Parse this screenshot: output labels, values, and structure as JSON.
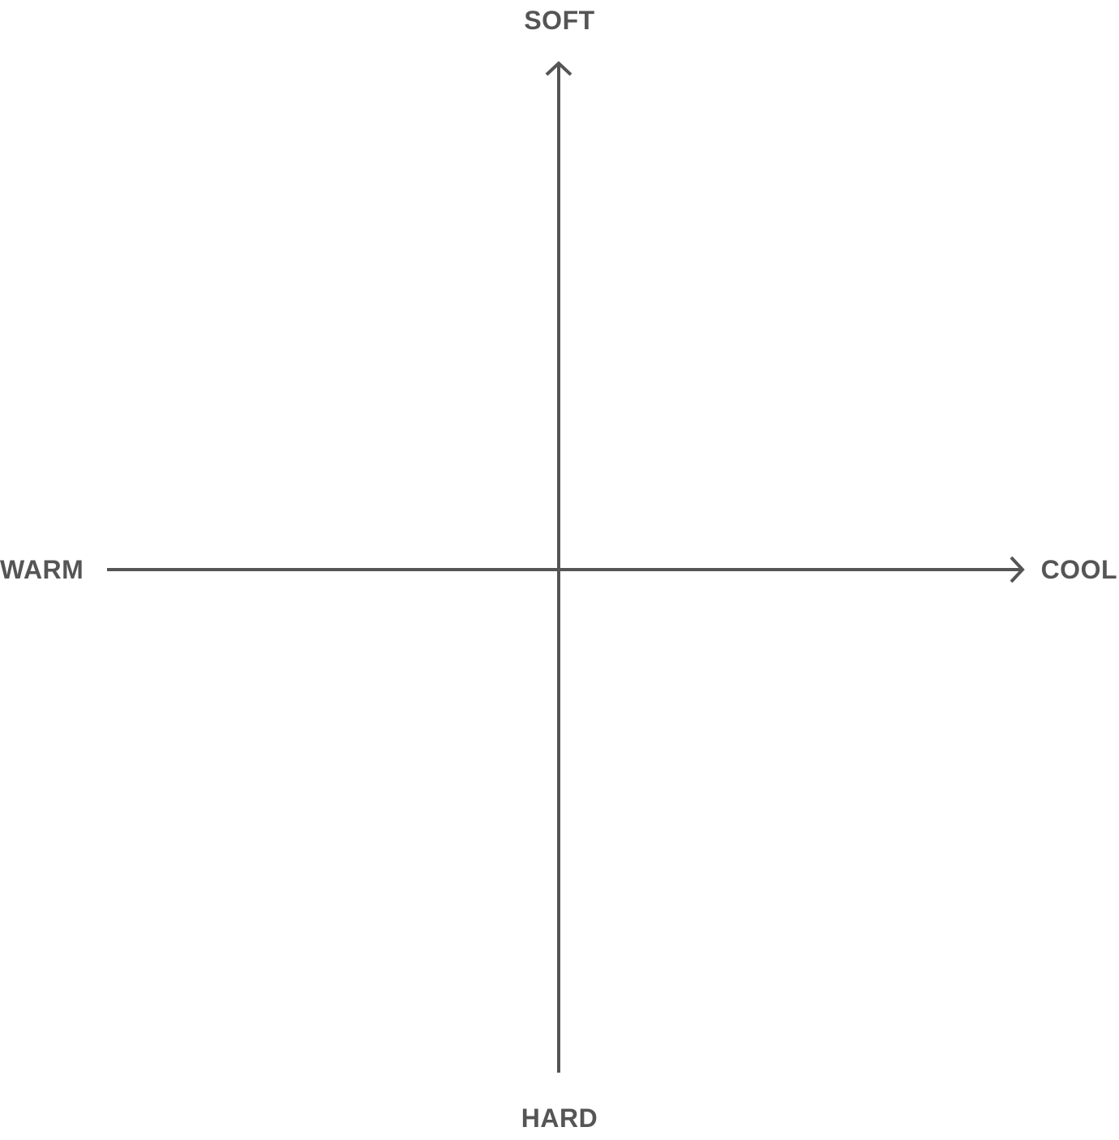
{
  "diagram": {
    "axes": {
      "top_label": "SOFT",
      "bottom_label": "HARD",
      "left_label": "WARM",
      "right_label": "COOL"
    },
    "colors": {
      "axis_line": "#555555",
      "label_text": "#555555",
      "background": "#ffffff"
    },
    "arrowheads": [
      "up",
      "right"
    ]
  }
}
